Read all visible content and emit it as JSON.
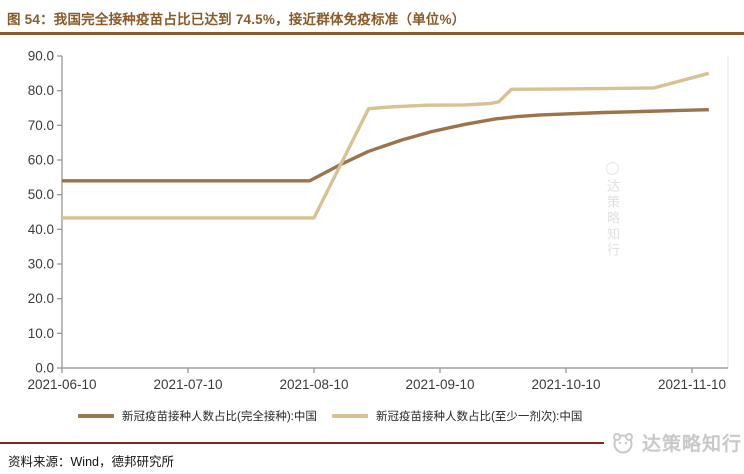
{
  "title": {
    "text": "图 54：我国完全接种疫苗占比已达到 74.5%，接近群体免疫标准（单位%）"
  },
  "colors": {
    "title_brown": "#8a5a28",
    "series_full": "#9c734a",
    "series_one_dose": "#d8c193",
    "axis_gray": "#8f8f8f",
    "tick_label_gray": "#3b3b3b",
    "plot_right_border": "#e0e0e0",
    "source_rule_maroon": "#7e2a20",
    "watermark_gray": "#c9c9c9"
  },
  "chart_data": {
    "type": "line",
    "title": "我国完全接种疫苗占比已达到 74.5%，接近群体免疫标准",
    "unit": "%",
    "xlabel": "",
    "ylabel": "",
    "ylim": [
      0,
      90
    ],
    "grid": false,
    "legend_position": "bottom",
    "x_tick_labels": [
      "2021-06-10",
      "2021-07-10",
      "2021-08-10",
      "2021-09-10",
      "2021-10-10",
      "2021-11-10"
    ],
    "y_ticks": [
      0,
      10,
      20,
      30,
      40,
      50,
      60,
      70,
      80,
      90
    ],
    "y_tick_labels": [
      "0.0",
      "10.0",
      "20.0",
      "30.0",
      "40.0",
      "50.0",
      "60.0",
      "70.0",
      "80.0",
      "90.0"
    ],
    "series": [
      {
        "name": "新冠疫苗接种人数占比(完全接种):中国",
        "color_key": "series_full",
        "points": [
          [
            "2021-06-10",
            54.0
          ],
          [
            "2021-07-10",
            54.0
          ],
          [
            "2021-08-09",
            54.0
          ],
          [
            "2021-08-16",
            58.5
          ],
          [
            "2021-08-23",
            62.5
          ],
          [
            "2021-08-31",
            65.8
          ],
          [
            "2021-09-08",
            68.2
          ],
          [
            "2021-09-16",
            70.3
          ],
          [
            "2021-09-23",
            71.8
          ],
          [
            "2021-09-28",
            72.5
          ],
          [
            "2021-10-04",
            73.0
          ],
          [
            "2021-10-10",
            73.3
          ],
          [
            "2021-10-19",
            73.7
          ],
          [
            "2021-10-28",
            74.0
          ],
          [
            "2021-11-07",
            74.3
          ],
          [
            "2021-11-14",
            74.5
          ]
        ]
      },
      {
        "name": "新冠疫苗接种人数占比(至少一剂次):中国",
        "color_key": "series_one_dose",
        "points": [
          [
            "2021-06-10",
            43.3
          ],
          [
            "2021-07-10",
            43.3
          ],
          [
            "2021-08-10",
            43.3
          ],
          [
            "2021-08-23",
            74.8
          ],
          [
            "2021-08-28",
            75.3
          ],
          [
            "2021-09-07",
            75.8
          ],
          [
            "2021-09-16",
            75.9
          ],
          [
            "2021-09-22",
            76.3
          ],
          [
            "2021-09-24",
            76.8
          ],
          [
            "2021-09-27",
            80.4
          ],
          [
            "2021-10-10",
            80.5
          ],
          [
            "2021-10-19",
            80.6
          ],
          [
            "2021-10-31",
            80.8
          ],
          [
            "2021-11-14",
            85.0
          ]
        ]
      }
    ]
  },
  "legend": {
    "items": [
      {
        "label": "新冠疫苗接种人数占比(完全接种):中国"
      },
      {
        "label": "新冠疫苗接种人数占比(至少一剂次):中国"
      }
    ]
  },
  "source": {
    "text": "资料来源：Wind，德邦研究所"
  },
  "watermark": {
    "text": "达策略知行"
  }
}
